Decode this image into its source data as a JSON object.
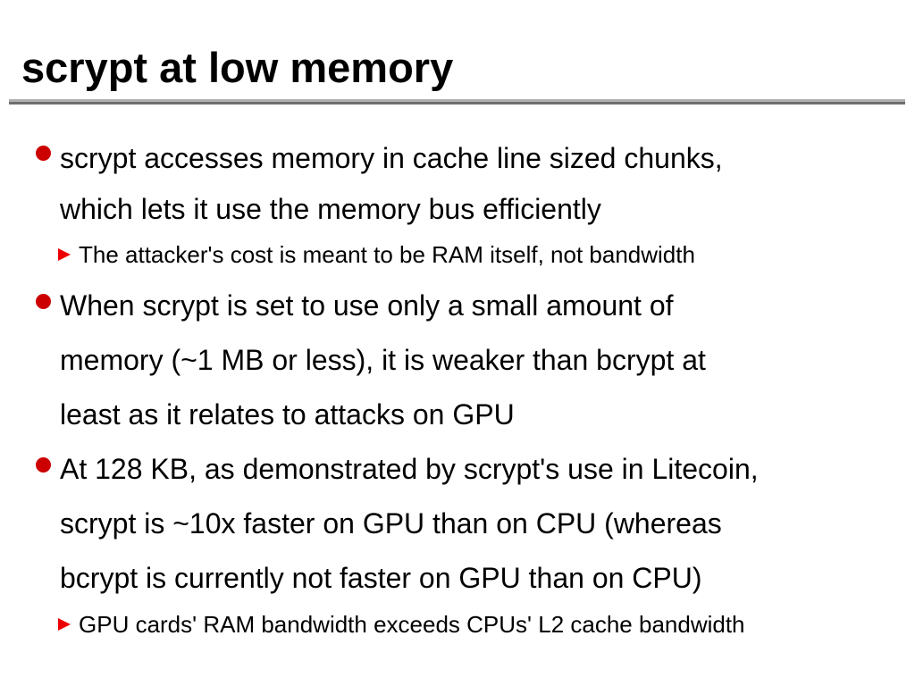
{
  "slide": {
    "title": "scrypt at low memory",
    "bullet_color": "#cc0000",
    "subbullet_color": "#ee0000",
    "bullets": [
      {
        "lines": [
          "scrypt accesses memory in cache line sized chunks,",
          "which lets it use the memory bus efficiently"
        ],
        "sub": "The attacker's cost is meant to be RAM itself, not bandwidth"
      },
      {
        "lines": [
          "When scrypt is set to use only a small amount of",
          "memory (~1 MB or less), it is weaker than bcrypt at",
          "least as it relates to attacks on GPU"
        ]
      },
      {
        "lines": [
          "At 128 KB, as demonstrated by scrypt's use in Litecoin,",
          "scrypt is ~10x faster on GPU than on CPU (whereas",
          "bcrypt is currently not faster on GPU than on CPU)"
        ],
        "sub": "GPU cards' RAM bandwidth exceeds CPUs' L2 cache bandwidth"
      }
    ]
  }
}
